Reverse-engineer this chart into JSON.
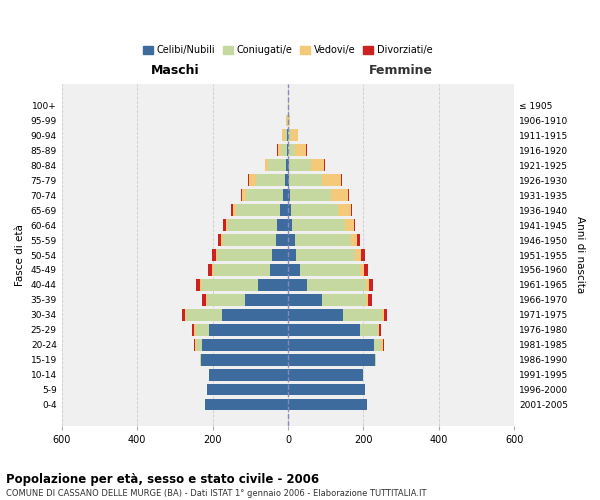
{
  "age_groups": [
    "0-4",
    "5-9",
    "10-14",
    "15-19",
    "20-24",
    "25-29",
    "30-34",
    "35-39",
    "40-44",
    "45-49",
    "50-54",
    "55-59",
    "60-64",
    "65-69",
    "70-74",
    "75-79",
    "80-84",
    "85-89",
    "90-94",
    "95-99",
    "100+"
  ],
  "birth_years": [
    "2001-2005",
    "1996-2000",
    "1991-1995",
    "1986-1990",
    "1981-1985",
    "1976-1980",
    "1971-1975",
    "1966-1970",
    "1961-1965",
    "1956-1960",
    "1951-1955",
    "1946-1950",
    "1941-1945",
    "1936-1940",
    "1931-1935",
    "1926-1930",
    "1921-1925",
    "1916-1920",
    "1911-1915",
    "1906-1910",
    "≤ 1905"
  ],
  "colors": {
    "celibe": "#3d6b9e",
    "coniugato": "#c5d8a0",
    "vedovo": "#f5c97a",
    "divorziato": "#cc2222"
  },
  "males": {
    "celibe": [
      220,
      215,
      210,
      230,
      228,
      210,
      175,
      115,
      80,
      48,
      42,
      32,
      28,
      20,
      14,
      8,
      4,
      3,
      2,
      1,
      0
    ],
    "coniugato": [
      0,
      0,
      0,
      2,
      15,
      35,
      95,
      100,
      148,
      148,
      145,
      140,
      132,
      118,
      98,
      78,
      48,
      16,
      7,
      2,
      1
    ],
    "vedovo": [
      0,
      0,
      0,
      0,
      4,
      4,
      4,
      3,
      5,
      5,
      5,
      5,
      5,
      9,
      10,
      18,
      8,
      8,
      7,
      2,
      0
    ],
    "divorziato": [
      0,
      0,
      0,
      0,
      2,
      5,
      8,
      10,
      10,
      10,
      9,
      9,
      7,
      5,
      2,
      2,
      2,
      3,
      0,
      0,
      0
    ]
  },
  "females": {
    "nubile": [
      210,
      205,
      200,
      230,
      228,
      190,
      145,
      90,
      50,
      32,
      22,
      18,
      12,
      8,
      5,
      3,
      2,
      1,
      1,
      0,
      0
    ],
    "coniugata": [
      0,
      0,
      0,
      3,
      20,
      48,
      105,
      118,
      158,
      158,
      155,
      148,
      138,
      125,
      108,
      88,
      58,
      18,
      7,
      2,
      1
    ],
    "vedova": [
      0,
      0,
      0,
      0,
      4,
      4,
      5,
      5,
      8,
      12,
      18,
      18,
      25,
      35,
      45,
      50,
      35,
      28,
      18,
      3,
      1
    ],
    "divorziata": [
      0,
      0,
      0,
      0,
      2,
      5,
      8,
      10,
      10,
      10,
      9,
      8,
      3,
      3,
      3,
      3,
      3,
      4,
      0,
      0,
      0
    ]
  },
  "title": "Popolazione per età, sesso e stato civile - 2006",
  "subtitle": "COMUNE DI CASSANO DELLE MURGE (BA) - Dati ISTAT 1° gennaio 2006 - Elaborazione TUTTITALIA.IT",
  "ylabel": "Fasce di età",
  "ylabel2": "Anni di nascita",
  "xlabel_left": "Maschi",
  "xlabel_right": "Femmine",
  "xlim": 600,
  "legend_labels": [
    "Celibi/Nubili",
    "Coniugati/e",
    "Vedovi/e",
    "Divorziati/e"
  ],
  "bg_color": "#ffffff",
  "plot_bg": "#f0f0f0",
  "grid_color": "#cccccc"
}
